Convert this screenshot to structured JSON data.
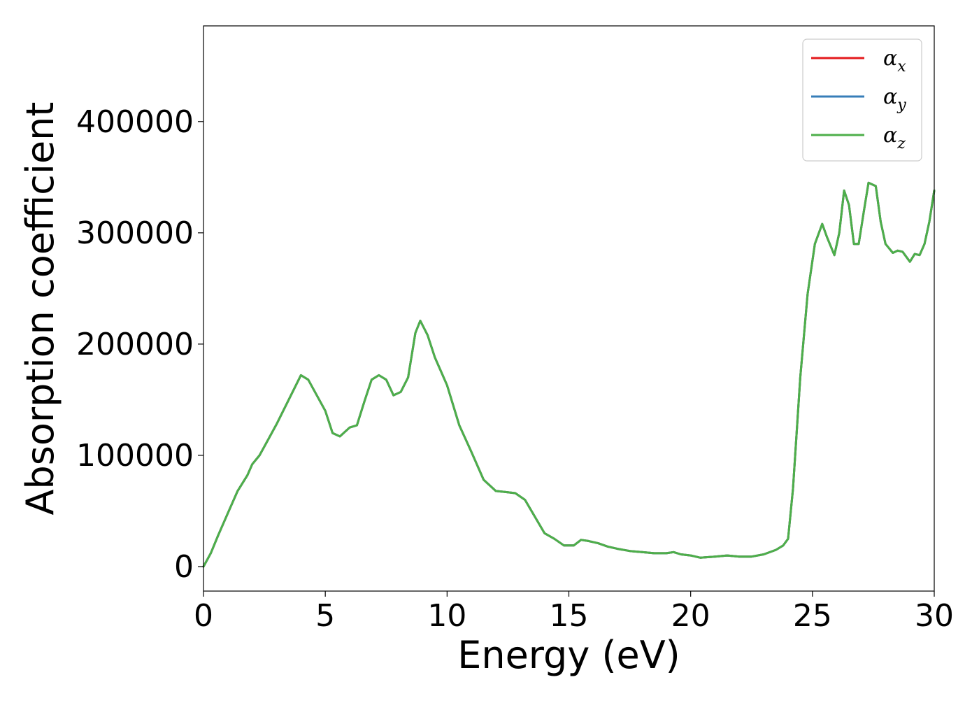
{
  "chart_data": {
    "type": "line",
    "title": "",
    "xlabel": "Energy (eV)",
    "ylabel": "Absorption coefficient",
    "xlim": [
      0,
      30
    ],
    "ylim": [
      -22000,
      486000
    ],
    "xticks": [
      0,
      5,
      10,
      15,
      20,
      25,
      30
    ],
    "xtick_labels": [
      "0",
      "5",
      "10",
      "15",
      "20",
      "25",
      "30"
    ],
    "yticks": [
      0,
      100000,
      200000,
      300000,
      400000
    ],
    "ytick_labels": [
      "0",
      "100000",
      "200000",
      "300000",
      "400000"
    ],
    "grid": false,
    "legend_position": "top-right",
    "series": [
      {
        "name": "α",
        "name_sub": "x",
        "color": "#e41a1c",
        "x": [
          0,
          0.3,
          0.6,
          1.0,
          1.4,
          1.8,
          2.0,
          2.3,
          2.6,
          3.0,
          3.5,
          4.0,
          4.3,
          4.7,
          5.0,
          5.3,
          5.6,
          6.0,
          6.3,
          6.6,
          6.9,
          7.2,
          7.5,
          7.8,
          8.1,
          8.4,
          8.7,
          8.9,
          9.2,
          9.5,
          10.0,
          10.5,
          11.0,
          11.5,
          12.0,
          12.4,
          12.8,
          13.2,
          13.6,
          14.0,
          14.4,
          14.8,
          15.2,
          15.5,
          15.8,
          16.2,
          16.6,
          17.0,
          17.5,
          18.0,
          18.5,
          19.0,
          19.3,
          19.6,
          20.0,
          20.4,
          21.0,
          21.5,
          22.0,
          22.5,
          23.0,
          23.5,
          23.8,
          24.0,
          24.2,
          24.5,
          24.8,
          25.1,
          25.4,
          25.6,
          25.9,
          26.1,
          26.3,
          26.5,
          26.7,
          26.9,
          27.1,
          27.3,
          27.6,
          27.8,
          28.0,
          28.3,
          28.5,
          28.7,
          29.0,
          29.2,
          29.4,
          29.6,
          29.8,
          30.0
        ],
        "y": [
          0,
          12000,
          28000,
          48000,
          68000,
          82000,
          92000,
          100000,
          112000,
          128000,
          150000,
          172000,
          168000,
          152000,
          140000,
          120000,
          117000,
          125000,
          127000,
          148000,
          168000,
          172000,
          168000,
          154000,
          157000,
          170000,
          210000,
          221000,
          208000,
          188000,
          163000,
          127000,
          103000,
          78000,
          68000,
          67000,
          66000,
          60000,
          45000,
          30000,
          25000,
          19000,
          19000,
          24000,
          23000,
          21000,
          18000,
          16000,
          14000,
          13000,
          12000,
          12000,
          13000,
          11000,
          10000,
          8000,
          9000,
          10000,
          9000,
          9000,
          11000,
          15000,
          19000,
          25000,
          70000,
          170000,
          245000,
          290000,
          308000,
          296000,
          280000,
          300000,
          338000,
          325000,
          290000,
          290000,
          318000,
          345000,
          342000,
          310000,
          290000,
          282000,
          284000,
          283000,
          274000,
          281000,
          280000,
          290000,
          310000,
          338000
        ]
      },
      {
        "name": "α",
        "name_sub": "y",
        "color": "#377eb8",
        "x": [
          0,
          0.3,
          0.6,
          1.0,
          1.4,
          1.8,
          2.0,
          2.3,
          2.6,
          3.0,
          3.5,
          4.0,
          4.3,
          4.7,
          5.0,
          5.3,
          5.6,
          6.0,
          6.3,
          6.6,
          6.9,
          7.2,
          7.5,
          7.8,
          8.1,
          8.4,
          8.7,
          8.9,
          9.2,
          9.5,
          10.0,
          10.5,
          11.0,
          11.5,
          12.0,
          12.4,
          12.8,
          13.2,
          13.6,
          14.0,
          14.4,
          14.8,
          15.2,
          15.5,
          15.8,
          16.2,
          16.6,
          17.0,
          17.5,
          18.0,
          18.5,
          19.0,
          19.3,
          19.6,
          20.0,
          20.4,
          21.0,
          21.5,
          22.0,
          22.5,
          23.0,
          23.5,
          23.8,
          24.0,
          24.2,
          24.5,
          24.8,
          25.1,
          25.4,
          25.6,
          25.9,
          26.1,
          26.3,
          26.5,
          26.7,
          26.9,
          27.1,
          27.3,
          27.6,
          27.8,
          28.0,
          28.3,
          28.5,
          28.7,
          29.0,
          29.2,
          29.4,
          29.6,
          29.8,
          30.0
        ],
        "y": [
          0,
          12000,
          28000,
          48000,
          68000,
          82000,
          92000,
          100000,
          112000,
          128000,
          150000,
          172000,
          168000,
          152000,
          140000,
          120000,
          117000,
          125000,
          127000,
          148000,
          168000,
          172000,
          168000,
          154000,
          157000,
          170000,
          210000,
          221000,
          208000,
          188000,
          163000,
          127000,
          103000,
          78000,
          68000,
          67000,
          66000,
          60000,
          45000,
          30000,
          25000,
          19000,
          19000,
          24000,
          23000,
          21000,
          18000,
          16000,
          14000,
          13000,
          12000,
          12000,
          13000,
          11000,
          10000,
          8000,
          9000,
          10000,
          9000,
          9000,
          11000,
          15000,
          19000,
          25000,
          70000,
          170000,
          245000,
          290000,
          308000,
          296000,
          280000,
          300000,
          338000,
          325000,
          290000,
          290000,
          318000,
          345000,
          342000,
          310000,
          290000,
          282000,
          284000,
          283000,
          274000,
          281000,
          280000,
          290000,
          310000,
          338000
        ]
      },
      {
        "name": "α",
        "name_sub": "z",
        "color": "#4daf4a",
        "x": [
          0,
          0.3,
          0.6,
          1.0,
          1.4,
          1.8,
          2.0,
          2.3,
          2.6,
          3.0,
          3.5,
          4.0,
          4.3,
          4.7,
          5.0,
          5.3,
          5.6,
          6.0,
          6.3,
          6.6,
          6.9,
          7.2,
          7.5,
          7.8,
          8.1,
          8.4,
          8.7,
          8.9,
          9.2,
          9.5,
          10.0,
          10.5,
          11.0,
          11.5,
          12.0,
          12.4,
          12.8,
          13.2,
          13.6,
          14.0,
          14.4,
          14.8,
          15.2,
          15.5,
          15.8,
          16.2,
          16.6,
          17.0,
          17.5,
          18.0,
          18.5,
          19.0,
          19.3,
          19.6,
          20.0,
          20.4,
          21.0,
          21.5,
          22.0,
          22.5,
          23.0,
          23.5,
          23.8,
          24.0,
          24.2,
          24.5,
          24.8,
          25.1,
          25.4,
          25.6,
          25.9,
          26.1,
          26.3,
          26.5,
          26.7,
          26.9,
          27.1,
          27.3,
          27.6,
          27.8,
          28.0,
          28.3,
          28.5,
          28.7,
          29.0,
          29.2,
          29.4,
          29.6,
          29.8,
          30.0
        ],
        "y": [
          0,
          12000,
          28000,
          48000,
          68000,
          82000,
          92000,
          100000,
          112000,
          128000,
          150000,
          172000,
          168000,
          152000,
          140000,
          120000,
          117000,
          125000,
          127000,
          148000,
          168000,
          172000,
          168000,
          154000,
          157000,
          170000,
          210000,
          221000,
          208000,
          188000,
          163000,
          127000,
          103000,
          78000,
          68000,
          67000,
          66000,
          60000,
          45000,
          30000,
          25000,
          19000,
          19000,
          24000,
          23000,
          21000,
          18000,
          16000,
          14000,
          13000,
          12000,
          12000,
          13000,
          11000,
          10000,
          8000,
          9000,
          10000,
          9000,
          9000,
          11000,
          15000,
          19000,
          25000,
          70000,
          170000,
          245000,
          290000,
          308000,
          296000,
          280000,
          300000,
          338000,
          325000,
          290000,
          290000,
          318000,
          345000,
          342000,
          310000,
          290000,
          282000,
          284000,
          283000,
          274000,
          281000,
          280000,
          290000,
          310000,
          338000
        ]
      }
    ]
  }
}
